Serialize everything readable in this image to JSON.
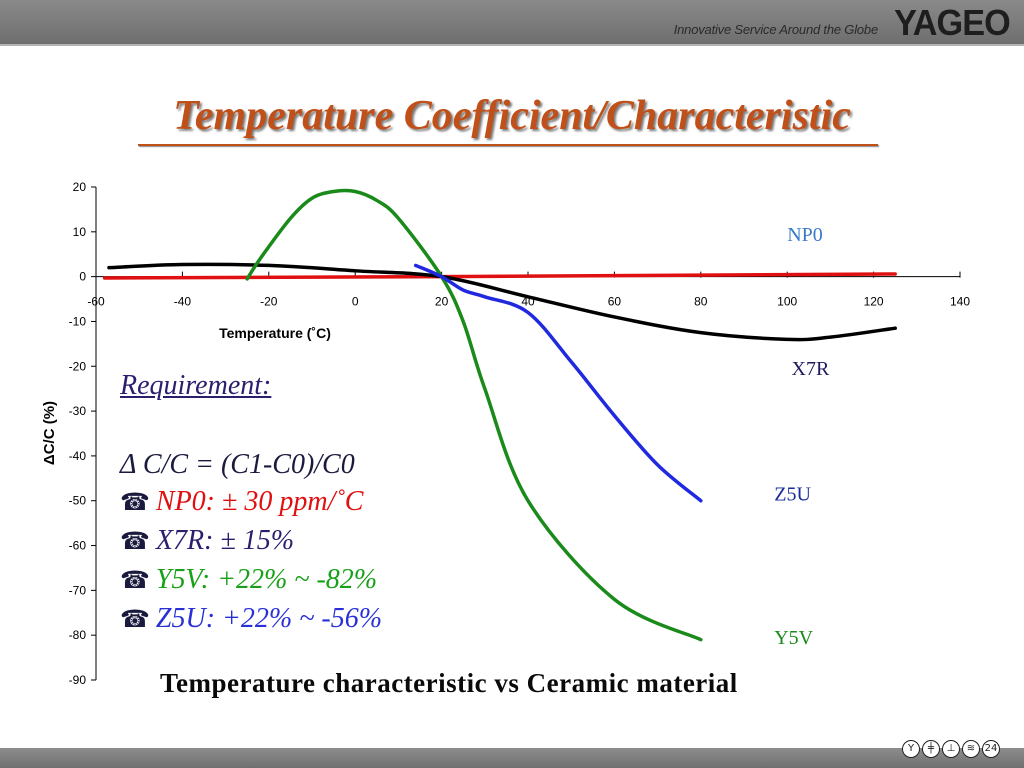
{
  "header": {
    "tagline": "Innovative Service Around the Globe",
    "logo": "YAGEO",
    "bar_color": "#7a7a7a"
  },
  "slide": {
    "title": "Temperature Coefficient/Characteristic",
    "caption": "Temperature characteristic vs Ceramic material",
    "page_number": "24"
  },
  "requirement": {
    "heading": "Requirement:",
    "formula": "Δ  C/C = (C1-C0)/C0",
    "items": [
      {
        "icon": "☎",
        "text": "NP0: ±  30 ppm/˚C"
      },
      {
        "icon": "☎",
        "text": "X7R: ±  15%"
      },
      {
        "icon": "☎",
        "text": "Y5V: +22% ~ -82%"
      },
      {
        "icon": "☎",
        "text": "Z5U: +22% ~ -56%"
      }
    ]
  },
  "footer": {
    "icons": [
      "antenna-icon",
      "capacitor-icon",
      "ground-icon",
      "resistor-icon"
    ],
    "glyphs": [
      "Y",
      "╪",
      "⊥",
      "≋"
    ]
  },
  "chart_data": {
    "type": "line",
    "title": "",
    "xlabel": "Temperature (˚C)",
    "ylabel": "ΔC/C (%)",
    "xlim": [
      -60,
      140
    ],
    "ylim": [
      -90,
      20
    ],
    "x_ticks": [
      -60,
      -40,
      -20,
      0,
      20,
      40,
      60,
      80,
      100,
      120,
      140
    ],
    "y_ticks": [
      20,
      10,
      0,
      -10,
      -20,
      -30,
      -40,
      -50,
      -60,
      -70,
      -80,
      -90
    ],
    "grid": false,
    "series": [
      {
        "name": "NP0",
        "color": "#e01010",
        "x": [
          -58,
          20,
          125
        ],
        "y": [
          -0.3,
          0,
          0.6
        ]
      },
      {
        "name": "X7R",
        "color": "#000000",
        "x": [
          -57,
          -40,
          -20,
          0,
          20,
          40,
          60,
          80,
          100,
          110,
          125
        ],
        "y": [
          2,
          2.7,
          2.5,
          1.3,
          0,
          -4.5,
          -9,
          -12.5,
          -14,
          -13.5,
          -11.5
        ]
      },
      {
        "name": "Y5V",
        "color": "#1a8a1a",
        "x": [
          -25,
          -22,
          -15,
          -10,
          -5,
          0,
          5,
          10,
          20,
          25,
          30,
          40,
          60,
          80
        ],
        "y": [
          -0.5,
          4,
          13,
          17.5,
          19,
          19,
          17,
          13,
          0,
          -10,
          -25,
          -50,
          -72,
          -81
        ]
      },
      {
        "name": "Z5U",
        "color": "#2028e0",
        "x": [
          14,
          20,
          25,
          30,
          40,
          50,
          60,
          70,
          80
        ],
        "y": [
          2.5,
          0,
          -3,
          -4.5,
          -8,
          -19,
          -31,
          -42,
          -50
        ]
      }
    ],
    "labels": [
      {
        "series": "NP0",
        "text": "NP0",
        "at": [
          100,
          8
        ],
        "color": "#3a78c8"
      },
      {
        "series": "X7R",
        "text": "X7R",
        "at": [
          101,
          -22
        ],
        "color": "#1e1a5e"
      },
      {
        "series": "Z5U",
        "text": "Z5U",
        "at": [
          97,
          -50
        ],
        "color": "#1a2a9e"
      },
      {
        "series": "Y5V",
        "text": "Y5V",
        "at": [
          97,
          -82
        ],
        "color": "#1a8a1a"
      }
    ]
  }
}
